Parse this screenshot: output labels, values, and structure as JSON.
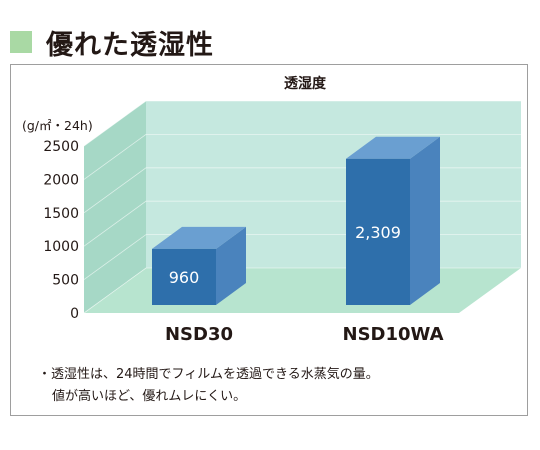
{
  "heading": {
    "text": "優れた透湿性",
    "marker_color": "#a9d9a4"
  },
  "chart_data": {
    "type": "bar",
    "title": "透湿度",
    "unit_label": "(g/㎡・24h)",
    "categories": [
      "NSD30",
      "NSD10WA"
    ],
    "values": [
      960,
      2309
    ],
    "value_labels": [
      "960",
      "2,309"
    ],
    "ylim": [
      0,
      2500
    ],
    "yticks": [
      "0",
      "500",
      "1000",
      "1500",
      "2000",
      "2500"
    ],
    "grid": false,
    "bar_color": "#2e6fab",
    "background_color": "#c5e8df"
  },
  "notes": [
    "・透湿性は、24時間でフィルムを透過できる水蒸気の量。",
    "値が高いほど、優れムレにくい。"
  ]
}
